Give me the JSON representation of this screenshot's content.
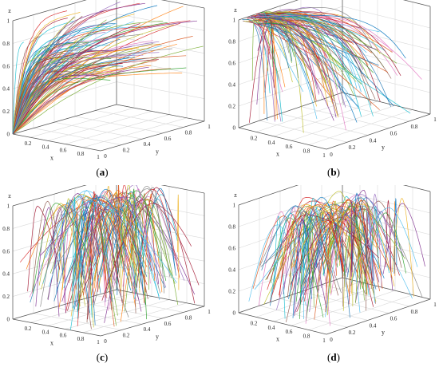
{
  "figure": {
    "panels": [
      {
        "id": "a",
        "caption_open": "(",
        "caption_letter": "a",
        "caption_close": ")"
      },
      {
        "id": "b",
        "caption_open": "(",
        "caption_letter": "b",
        "caption_close": ")"
      },
      {
        "id": "c",
        "caption_open": "(",
        "caption_letter": "c",
        "caption_close": ")"
      },
      {
        "id": "d",
        "caption_open": "(",
        "caption_letter": "d",
        "caption_close": ")"
      }
    ]
  },
  "chart_data": [
    {
      "type": "line",
      "projection": "3d",
      "panel": "a",
      "xlabel": "x",
      "ylabel": "y",
      "zlabel": "z",
      "xlim": [
        0,
        1
      ],
      "ylim": [
        0,
        1
      ],
      "zlim": [
        0,
        1
      ],
      "xticks": [
        "0",
        "0.2",
        "0.4",
        "0.6",
        "0.8",
        "1"
      ],
      "yticks": [
        "0",
        "0.2",
        "0.4",
        "0.6",
        "0.8",
        "1"
      ],
      "zticks": [
        "0",
        "0.2",
        "0.4",
        "0.6",
        "0.8",
        "1"
      ],
      "grid": true,
      "trajectory_start": {
        "x": 0,
        "y": 0,
        "z": 0
      },
      "trajectory_end": {
        "z": 1
      },
      "description": "multiple colored trajectories rising from origin toward z = 1"
    },
    {
      "type": "line",
      "projection": "3d",
      "panel": "b",
      "xlabel": "x",
      "ylabel": "y",
      "zlabel": "z",
      "xlim": [
        0,
        1
      ],
      "ylim": [
        0,
        1
      ],
      "zlim": [
        0,
        1
      ],
      "xticks": [
        "0",
        "0.2",
        "0.4",
        "0.6",
        "0.8",
        "1"
      ],
      "yticks": [
        "0",
        "0.2",
        "0.4",
        "0.6",
        "0.8",
        "1"
      ],
      "zticks": [
        "0",
        "0.2",
        "0.4",
        "0.6",
        "0.8",
        "1"
      ],
      "grid": true,
      "trajectory_start": {
        "z": 1
      },
      "description": "multiple colored trajectories starting at z = 1 and descending"
    },
    {
      "type": "line",
      "projection": "3d",
      "panel": "c",
      "xlabel": "x",
      "ylabel": "y",
      "zlabel": "z",
      "xlim": [
        0,
        1
      ],
      "ylim": [
        0,
        1
      ],
      "zlim": [
        0,
        1
      ],
      "xticks": [
        "0",
        "0.2",
        "0.4",
        "0.6",
        "0.8",
        "1"
      ],
      "yticks": [
        "0",
        "0.2",
        "0.4",
        "0.6",
        "0.8",
        "1"
      ],
      "zticks": [
        "0",
        "0.2",
        "0.4",
        "0.6",
        "0.8",
        "1"
      ],
      "grid": true,
      "trajectory_apex": {
        "x": 0.5,
        "y": 0.5,
        "z": 1
      },
      "description": "multiple colored trajectories arching up to z = 1 and falling away"
    },
    {
      "type": "line",
      "projection": "3d",
      "panel": "d",
      "xlabel": "x",
      "ylabel": "y",
      "zlabel": "z",
      "xlim": [
        0,
        1
      ],
      "ylim": [
        0,
        1
      ],
      "zlim": [
        0,
        1
      ],
      "xticks": [
        "0",
        "0.2",
        "0.4",
        "0.6",
        "0.8",
        "1"
      ],
      "yticks": [
        "0",
        "0.2",
        "0.4",
        "0.6",
        "0.8",
        "1"
      ],
      "zticks": [
        "0",
        "0.2",
        "0.4",
        "0.6",
        "0.8",
        "1"
      ],
      "grid": true,
      "trajectory_apex": {
        "z": 0.9
      },
      "description": "multiple colored trajectories arching to about z = 0.9 and falling away"
    }
  ]
}
